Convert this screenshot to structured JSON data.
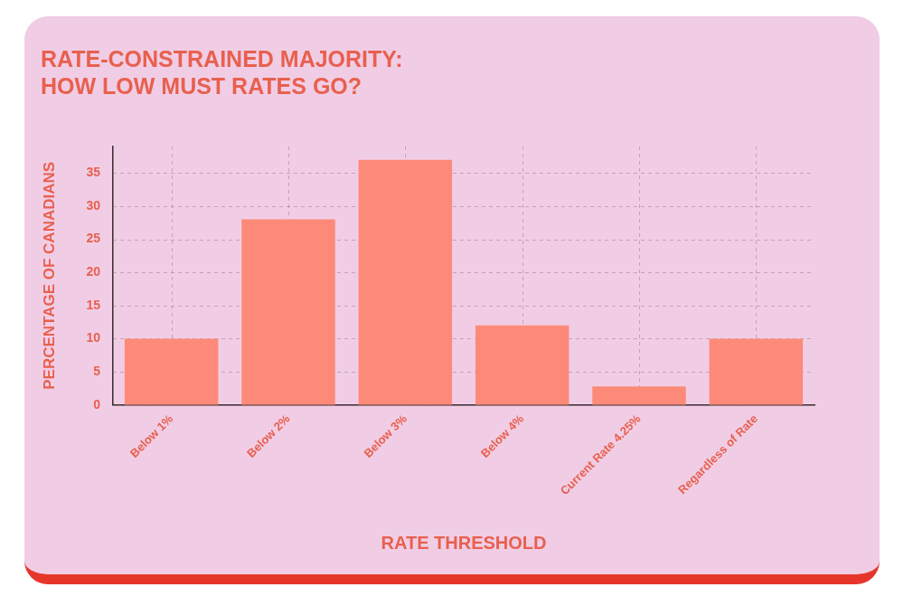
{
  "chart_data": {
    "type": "bar",
    "title": [
      "RATE-CONSTRAINED MAJORITY:",
      "HOW LOW MUST RATES GO?"
    ],
    "x_label": "RATE THRESHOLD",
    "y_label": "PERCENTAGE OF CANADIANS",
    "categories": [
      "Below 1%",
      "Below 2%",
      "Below 3%",
      "Below 4%",
      "Current Rate 4.25%",
      "Regardless of Rate"
    ],
    "values": [
      10,
      28,
      37,
      12,
      2.8,
      10
    ],
    "color": "#fd8a78",
    "ylim": [
      0,
      39
    ],
    "yticks": [
      0,
      5,
      10,
      15,
      20,
      25,
      30,
      35
    ],
    "grid": true,
    "data_labels": false
  }
}
